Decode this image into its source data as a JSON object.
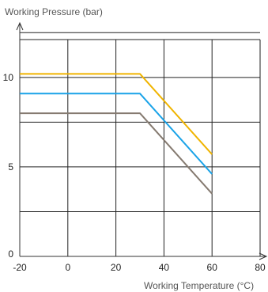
{
  "chart_data": {
    "type": "line",
    "title": "",
    "xlabel": "Working Temperature (°C)",
    "ylabel": "Working Pressure (bar)",
    "xlim": [
      -20,
      80
    ],
    "ylim": [
      0,
      13
    ],
    "xticks": [
      "-20",
      "0",
      "20",
      "40",
      "60",
      "80"
    ],
    "yticks": [
      "0",
      "5",
      "10"
    ],
    "grid": true,
    "legend": "none",
    "series": [
      {
        "color": "#f0b400",
        "x": [
          -20,
          30,
          60
        ],
        "y": [
          10.2,
          10.2,
          5.7
        ]
      },
      {
        "color": "#1aa3e8",
        "x": [
          -20,
          30,
          60
        ],
        "y": [
          9.1,
          9.1,
          4.6
        ]
      },
      {
        "color": "#857a70",
        "x": [
          -20,
          30,
          60
        ],
        "y": [
          8.0,
          8.0,
          3.5
        ]
      }
    ]
  }
}
